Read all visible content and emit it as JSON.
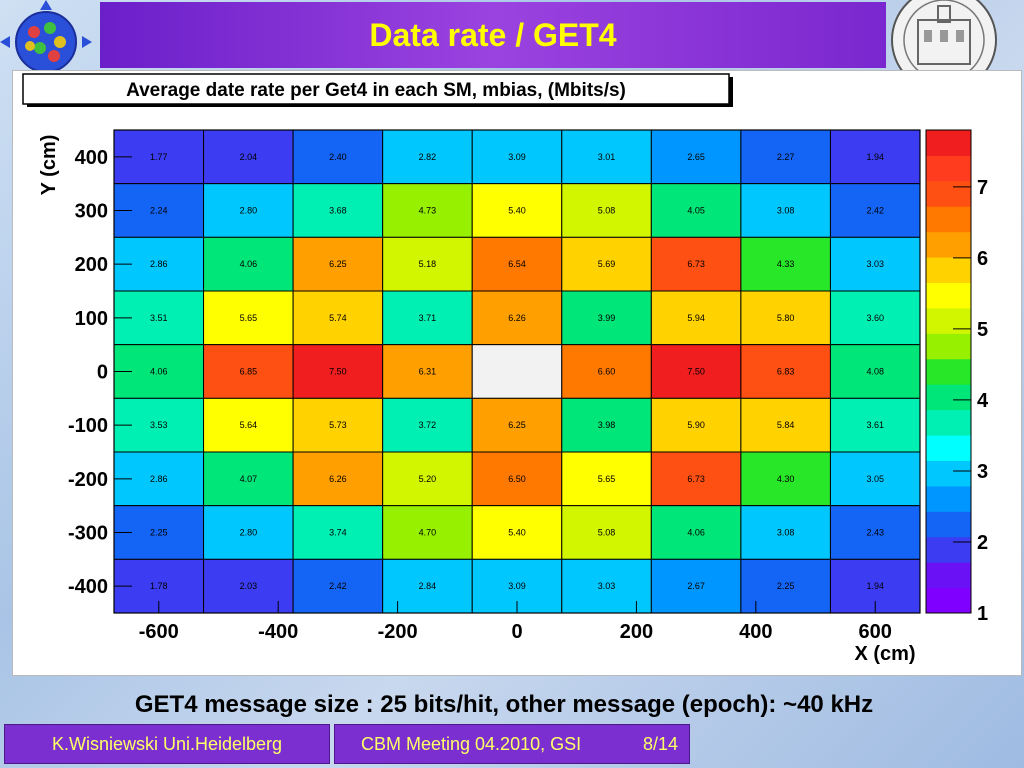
{
  "slide": {
    "title": "Data rate / GET4",
    "subtitle": "GET4 message size : 25 bits/hit, other message (epoch): ~40 kHz",
    "footer_author": "K.Wisniewski Uni.Heidelberg",
    "footer_meeting": "CBM Meeting 04.2010, GSI",
    "footer_page": "8/14"
  },
  "colors": {
    "title_bg": "#7b2fd0",
    "title_text": "#ffff00",
    "footer_text": "#ffff66",
    "palette": [
      "#7f00ff",
      "#6a11f5",
      "#3c3cf2",
      "#1464f5",
      "#0096ff",
      "#00c8ff",
      "#00ffff",
      "#00f0b4",
      "#00e678",
      "#28e628",
      "#96f000",
      "#d2f500",
      "#ffff00",
      "#ffd200",
      "#ffa000",
      "#ff7800",
      "#ff5014",
      "#ff3c1e",
      "#f01e1e"
    ]
  },
  "chart_data": {
    "type": "heatmap",
    "title": "Average date rate per Get4 in each SM, mbias, (Mbits/s)",
    "xlabel": "X (cm)",
    "ylabel": "Y (cm)",
    "x_ticks": [
      "-600",
      "-400",
      "-200",
      "0",
      "200",
      "400",
      "600"
    ],
    "x_tick_values": [
      -600,
      -400,
      -200,
      0,
      200,
      400,
      600
    ],
    "y_ticks": [
      "400",
      "300",
      "200",
      "100",
      "0",
      "-100",
      "-200",
      "-300",
      "-400"
    ],
    "y_tick_values": [
      400,
      300,
      200,
      100,
      0,
      -100,
      -200,
      -300,
      -400
    ],
    "xlim": [
      -675,
      675
    ],
    "ylim": [
      -450,
      450
    ],
    "zlim": [
      1,
      7.8
    ],
    "z_ticks": [
      "7",
      "6",
      "5",
      "4",
      "3",
      "2",
      "1"
    ],
    "z_tick_values": [
      7,
      6,
      5,
      4,
      3,
      2,
      1
    ],
    "x_centers": [
      -600,
      -450,
      -300,
      -150,
      0,
      150,
      300,
      450,
      600
    ],
    "y_centers": [
      400,
      300,
      200,
      100,
      0,
      -100,
      -200,
      -300,
      -400
    ],
    "values": [
      [
        "1.77",
        "2.04",
        "2.40",
        "2.82",
        "3.09",
        "3.01",
        "2.65",
        "2.27",
        "1.94"
      ],
      [
        "2.24",
        "2.80",
        "3.68",
        "4.73",
        "5.40",
        "5.08",
        "4.05",
        "3.08",
        "2.42"
      ],
      [
        "2.86",
        "4.06",
        "6.25",
        "5.18",
        "6.54",
        "5.69",
        "6.73",
        "4.33",
        "3.03"
      ],
      [
        "3.51",
        "5.65",
        "5.74",
        "3.71",
        "6.26",
        "3.99",
        "5.94",
        "5.80",
        "3.60"
      ],
      [
        "4.06",
        "6.85",
        "7.50",
        "6.31",
        "",
        "6.60",
        "7.50",
        "6.83",
        "4.08"
      ],
      [
        "3.53",
        "5.64",
        "5.73",
        "3.72",
        "6.25",
        "3.98",
        "5.90",
        "5.84",
        "3.61"
      ],
      [
        "2.86",
        "4.07",
        "6.26",
        "5.20",
        "6.50",
        "5.65",
        "6.73",
        "4.30",
        "3.05"
      ],
      [
        "2.25",
        "2.80",
        "3.74",
        "4.70",
        "5.40",
        "5.08",
        "4.06",
        "3.08",
        "2.43"
      ],
      [
        "1.78",
        "2.03",
        "2.42",
        "2.84",
        "3.09",
        "3.03",
        "2.67",
        "2.25",
        "1.94"
      ]
    ]
  }
}
